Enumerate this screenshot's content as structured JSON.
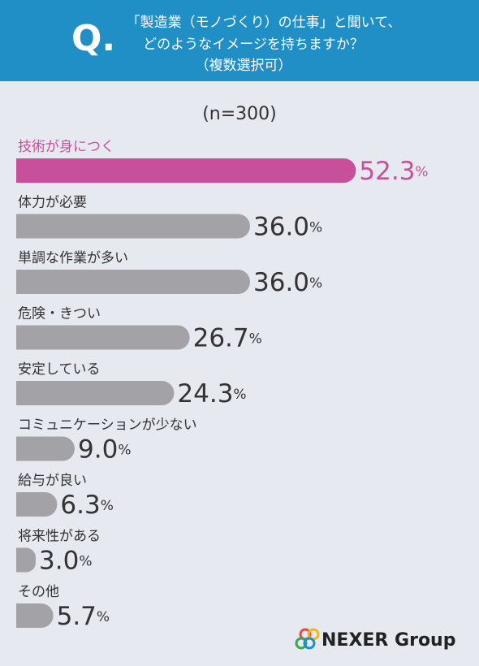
{
  "chart_data": {
    "type": "bar",
    "orientation": "horizontal",
    "question_mark": "Q.",
    "title_lines": [
      "「製造業（モノづくり）の仕事」と聞いて、",
      "どのようなイメージを持ちますか？",
      "（複数選択可）"
    ],
    "subtitle": "(n=300)",
    "categories": [
      "技術が身につく",
      "体力が必要",
      "単調な作業が多い",
      "危険・きつい",
      "安定している",
      "コミュニケーションが少ない",
      "給与が良い",
      "将来性がある",
      "その他"
    ],
    "values": [
      52.3,
      36.0,
      36.0,
      26.7,
      24.3,
      9.0,
      6.3,
      3.0,
      5.7
    ],
    "value_labels": [
      "52.3",
      "36.0",
      "36.0",
      "26.7",
      "24.3",
      "9.0",
      "6.3",
      "3.0",
      "5.7"
    ],
    "unit": "%",
    "colors": [
      "#c8509a",
      "#a3a3a7",
      "#a3a3a7",
      "#a3a3a7",
      "#a3a3a7",
      "#a3a3a7",
      "#a3a3a7",
      "#a3a3a7",
      "#a3a3a7"
    ],
    "label_colors": [
      "#c8509a",
      "#333333",
      "#333333",
      "#333333",
      "#333333",
      "#333333",
      "#333333",
      "#333333",
      "#333333"
    ],
    "xlim": [
      0,
      54
    ],
    "brand": "NEXER Group"
  }
}
